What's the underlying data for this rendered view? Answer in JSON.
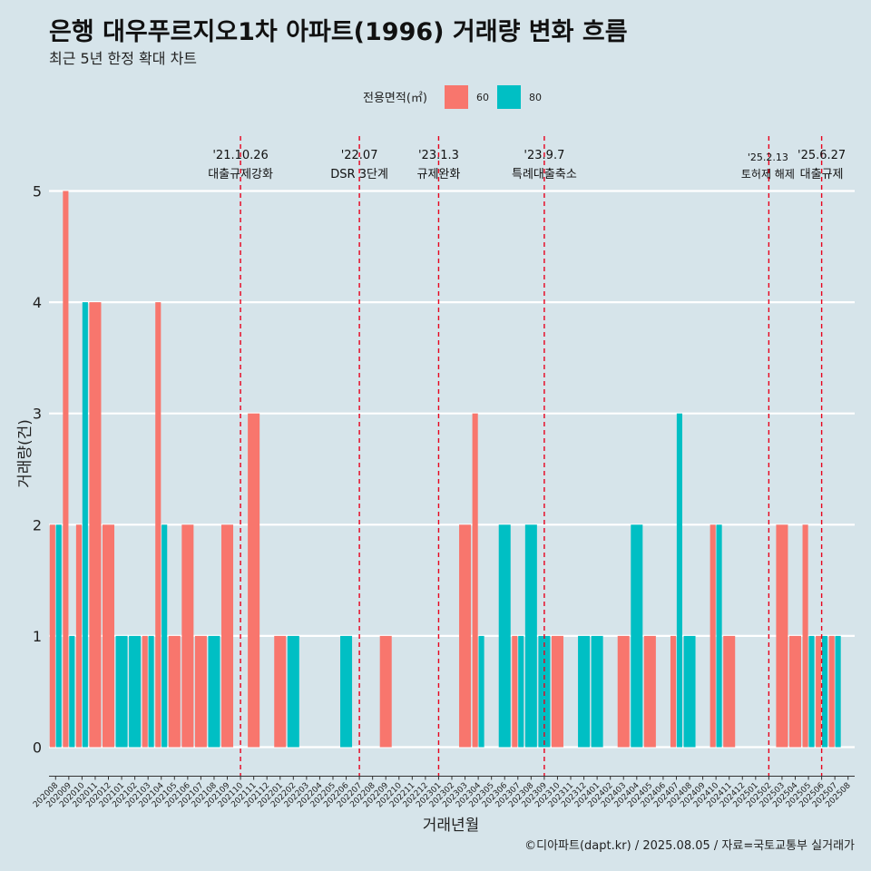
{
  "title": "은행 대우푸르지오1차 아파트(1996) 거래량 변화 흐름",
  "subtitle": "최근 5년 한정 확대 차트",
  "caption": "©디아파트(dapt.kr) / 2025.08.05 / 자료=국토교통부 실거래가",
  "legend": {
    "title": "전용면적(㎡)",
    "items": [
      {
        "label": "60",
        "color": "#f8766d"
      },
      {
        "label": "80",
        "color": "#00bfc4"
      }
    ]
  },
  "chart_data": {
    "type": "bar",
    "xlabel": "거래년월",
    "ylabel": "거래량(건)",
    "ylim": [
      0,
      5
    ],
    "yticks": [
      0,
      1,
      2,
      3,
      4,
      5
    ],
    "grid": true,
    "legend_position": "top",
    "categories": [
      "202008",
      "202009",
      "202010",
      "202011",
      "202012",
      "202101",
      "202102",
      "202103",
      "202104",
      "202105",
      "202106",
      "202107",
      "202108",
      "202109",
      "202110",
      "202111",
      "202112",
      "202201",
      "202202",
      "202203",
      "202204",
      "202205",
      "202206",
      "202207",
      "202208",
      "202209",
      "202210",
      "202211",
      "202212",
      "202301",
      "202302",
      "202303",
      "202304",
      "202305",
      "202306",
      "202307",
      "202308",
      "202309",
      "202310",
      "202311",
      "202312",
      "202401",
      "202402",
      "202403",
      "202404",
      "202405",
      "202406",
      "202407",
      "202408",
      "202409",
      "202410",
      "202411",
      "202412",
      "202501",
      "202502",
      "202503",
      "202504",
      "202505",
      "202506",
      "202507",
      "202508"
    ],
    "series": [
      {
        "name": "60",
        "color": "#f8766d",
        "points": [
          [
            "202008",
            2
          ],
          [
            "202009",
            5
          ],
          [
            "202010",
            2
          ],
          [
            "202011",
            4
          ],
          [
            "202012",
            2
          ],
          [
            "202103",
            1
          ],
          [
            "202104",
            4
          ],
          [
            "202105",
            1
          ],
          [
            "202106",
            2
          ],
          [
            "202107",
            1
          ],
          [
            "202109",
            2
          ],
          [
            "202111",
            3
          ],
          [
            "202201",
            1
          ],
          [
            "202209",
            1
          ],
          [
            "202303",
            2
          ],
          [
            "202304",
            3
          ],
          [
            "202307",
            1
          ],
          [
            "202310",
            1
          ],
          [
            "202403",
            1
          ],
          [
            "202405",
            1
          ],
          [
            "202407",
            1
          ],
          [
            "202410",
            2
          ],
          [
            "202411",
            1
          ],
          [
            "202503",
            2
          ],
          [
            "202504",
            1
          ],
          [
            "202505",
            2
          ],
          [
            "202506",
            1
          ],
          [
            "202507",
            1
          ]
        ]
      },
      {
        "name": "80",
        "color": "#00bfc4",
        "points": [
          [
            "202008",
            2
          ],
          [
            "202009",
            1
          ],
          [
            "202010",
            4
          ],
          [
            "202101",
            1
          ],
          [
            "202102",
            1
          ],
          [
            "202103",
            1
          ],
          [
            "202104",
            2
          ],
          [
            "202108",
            1
          ],
          [
            "202202",
            1
          ],
          [
            "202206",
            1
          ],
          [
            "202304",
            1
          ],
          [
            "202306",
            2
          ],
          [
            "202307",
            1
          ],
          [
            "202308",
            2
          ],
          [
            "202309",
            1
          ],
          [
            "202312",
            1
          ],
          [
            "202401",
            1
          ],
          [
            "202404",
            2
          ],
          [
            "202407",
            3
          ],
          [
            "202408",
            1
          ],
          [
            "202410",
            2
          ],
          [
            "202505",
            1
          ],
          [
            "202506",
            1
          ],
          [
            "202507",
            1
          ]
        ]
      }
    ],
    "events": [
      {
        "month": "202110",
        "date": "'21.10.26",
        "label": "대출규제강화"
      },
      {
        "month": "202207",
        "date": "'22.07",
        "label": "DSR 3단계"
      },
      {
        "month": "202301",
        "date": "'23.1.3",
        "label": "규제완화"
      },
      {
        "month": "202309",
        "date": "'23.9.7",
        "label": "특례대출축소"
      },
      {
        "month": "202502",
        "date": "'25.2.13",
        "label": "토허제 해제"
      },
      {
        "month": "202506",
        "date": "'25.6.27",
        "label": "대출규제"
      }
    ]
  }
}
